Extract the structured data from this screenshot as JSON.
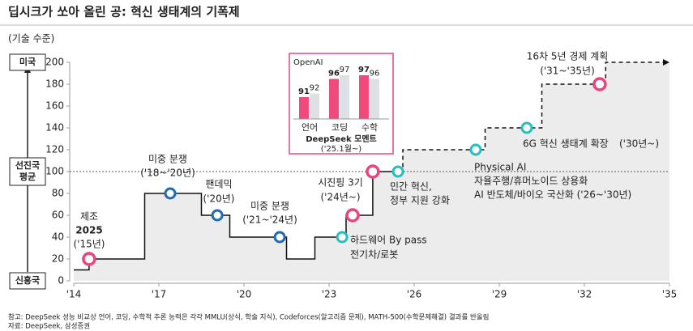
{
  "chart_data": {
    "type": "step-line",
    "title": "딥시크가 쏘아 올린 공: 혁신 생태계의 기폭제",
    "subtitle": "(기술 수준)",
    "xlim": [
      2014,
      2035
    ],
    "xticks": [
      {
        "value": 2014,
        "label": "'14"
      },
      {
        "value": 2017,
        "label": "'17"
      },
      {
        "value": 2020,
        "label": "'20"
      },
      {
        "value": 2023,
        "label": "'23"
      },
      {
        "value": 2026,
        "label": "'26"
      },
      {
        "value": 2029,
        "label": "'29"
      },
      {
        "value": 2032,
        "label": "'32"
      },
      {
        "value": 2035,
        "label": "'35"
      }
    ],
    "ylim": [
      0,
      200
    ],
    "yticks": [
      0,
      20,
      40,
      60,
      80,
      100,
      120,
      140,
      160,
      180,
      200
    ],
    "reference_line": 100,
    "level_labels": [
      {
        "value": 200,
        "label": "미국"
      },
      {
        "value": 100,
        "label": "선진국 평균"
      },
      {
        "value": 0,
        "label": "신흥국"
      }
    ],
    "series": [
      {
        "name": "actual",
        "style": "solid",
        "color": "#111111",
        "x": [
          2014,
          2014.54,
          2014.54,
          2016.5,
          2016.5,
          2018.5,
          2018.5,
          2019.5,
          2019.5,
          2021.5,
          2021.5,
          2022.5,
          2022.5,
          2023.6,
          2023.6,
          2024.54,
          2024.54,
          2025.5
        ],
        "values": [
          10,
          10,
          20,
          20,
          80,
          80,
          60,
          60,
          40,
          40,
          20,
          20,
          40,
          40,
          60,
          60,
          100,
          100
        ]
      },
      {
        "name": "plan",
        "style": "dashed",
        "color": "#111111",
        "x": [
          2025.5,
          2025.6,
          2025.6,
          2028.5,
          2028.5,
          2030.5,
          2030.5,
          2032.75,
          2032.75,
          2035
        ],
        "values": [
          100,
          100,
          120,
          120,
          140,
          140,
          180,
          180,
          200,
          200
        ]
      }
    ],
    "markers": [
      {
        "x": 2014.54,
        "value": 20,
        "color": "#e8467c",
        "lines": [
          {
            "text": "제조",
            "color": "#e8467c"
          },
          {
            "text": "2025",
            "color": "#e8467c"
          },
          {
            "text": "('15년)",
            "color": "#222222"
          }
        ]
      },
      {
        "x": 2017.4,
        "value": 80,
        "color": "#1f6bb5",
        "lines": [
          {
            "text": "미중 분쟁",
            "color": "#1f6bb5"
          },
          {
            "text": "('18~'20년)",
            "color": "#222222"
          }
        ]
      },
      {
        "x": 2019.06,
        "value": 60,
        "color": "#1f6bb5",
        "lines": [
          {
            "text": "팬데믹",
            "color": "#1f6bb5"
          },
          {
            "text": "('20년)",
            "color": "#222222"
          }
        ]
      },
      {
        "x": 2021.26,
        "value": 40,
        "color": "#1f6bb5",
        "lines": [
          {
            "text": "미중 분쟁",
            "color": "#1f6bb5"
          },
          {
            "text": "('21~'24년)",
            "color": "#222222"
          }
        ]
      },
      {
        "x": 2023.46,
        "value": 40,
        "color": "#26bfbf",
        "lines": [
          {
            "text": "하드웨어 By pass",
            "color": "#26bfbf"
          },
          {
            "text": "전기차/로봇",
            "color": "#222222"
          }
        ]
      },
      {
        "x": 2023.83,
        "value": 60,
        "color": "#e8467c",
        "lines": [
          {
            "text": "시진핑 3기",
            "color": "#e8467c"
          },
          {
            "text": "('24년~)",
            "color": "#222222"
          }
        ]
      },
      {
        "x": 2024.54,
        "value": 100,
        "color": "#e8467c",
        "lines": []
      },
      {
        "x": 2025.43,
        "value": 100,
        "color": "#26bfbf",
        "lines": [
          {
            "text": "민간 혁신,",
            "color": "#26bfbf"
          },
          {
            "text": "정부 지원 강화",
            "color": "#26bfbf"
          }
        ]
      },
      {
        "x": 2028.17,
        "value": 120,
        "color": "#26bfbf",
        "lines": [
          {
            "text": "Physical AI",
            "color": "#26bfbf"
          },
          {
            "text": "자율주행/휴머노이드 상용화",
            "color": "#222222"
          },
          {
            "text": "AI 반도체/바이오 국산화 ('26~'30년)",
            "color": "#222222"
          }
        ]
      },
      {
        "x": 2029.97,
        "value": 140,
        "color": "#26bfbf",
        "lines": [
          {
            "text": "6G 혁신 생태계 확장",
            "color": "#26bfbf"
          },
          {
            "text": "('30년~)",
            "color": "#222222"
          }
        ]
      },
      {
        "x": 2032.54,
        "value": 180,
        "color": "#e8467c",
        "lines": [
          {
            "text": "16차 5년 경제 계획",
            "color": "#e8467c"
          },
          {
            "text": "('31~'35년)",
            "color": "#222222"
          }
        ]
      }
    ],
    "inset": {
      "type": "bar",
      "label": "OpenAI",
      "categories": [
        "언어",
        "코딩",
        "수학"
      ],
      "ylim": [
        85,
        100
      ],
      "series": [
        {
          "name": "DeepSeek",
          "color": "#f04a7c",
          "values": [
            91,
            96,
            97
          ]
        },
        {
          "name": "OpenAI",
          "color": "#dde0e4",
          "values": [
            92,
            97,
            96
          ]
        }
      ],
      "caption": "DeepSeek  모멘트",
      "caption_sub": "('25.1월~)"
    },
    "footnotes": [
      "참고: DeepSeek 성능 비교상 언어, 코딩, 수학적 추론 능력은 각각 MMLU(상식, 학술 지식), Codeforces(알고리즘 문제), MATH-500(수학문제해결) 결과를 반올림",
      "자료: DeepSeek, 삼성증권"
    ]
  }
}
